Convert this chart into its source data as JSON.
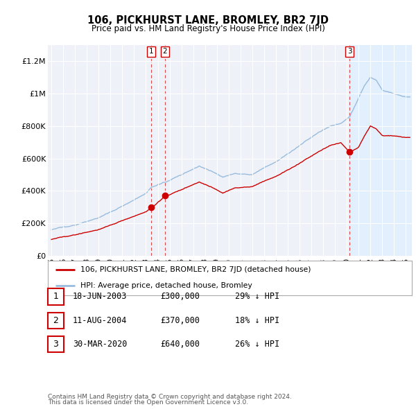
{
  "title": "106, PICKHURST LANE, BROMLEY, BR2 7JD",
  "subtitle": "Price paid vs. HM Land Registry's House Price Index (HPI)",
  "ylim": [
    0,
    1300000
  ],
  "yticks": [
    0,
    200000,
    400000,
    600000,
    800000,
    1000000,
    1200000
  ],
  "ytick_labels": [
    "£0",
    "£200K",
    "£400K",
    "£600K",
    "£800K",
    "£1M",
    "£1.2M"
  ],
  "transactions": [
    {
      "date": "18-JUN-2003",
      "price": 300000,
      "label": "1",
      "pct": "29% ↓ HPI"
    },
    {
      "date": "11-AUG-2004",
      "price": 370000,
      "label": "2",
      "pct": "18% ↓ HPI"
    },
    {
      "date": "30-MAR-2020",
      "price": 640000,
      "label": "3",
      "pct": "26% ↓ HPI"
    }
  ],
  "transaction_years": [
    2003.46,
    2004.61,
    2020.24
  ],
  "legend_red": "106, PICKHURST LANE, BROMLEY, BR2 7JD (detached house)",
  "legend_blue": "HPI: Average price, detached house, Bromley",
  "footer1": "Contains HM Land Registry data © Crown copyright and database right 2024.",
  "footer2": "This data is licensed under the Open Government Licence v3.0.",
  "red_color": "#cc0000",
  "blue_color": "#99bbdd",
  "shade_color": "#ddeeff",
  "background_chart": "#eef2f8",
  "grid_color": "#ffffff",
  "shade_start": 2020.24,
  "xlim_left": 1994.7,
  "xlim_right": 2025.5
}
